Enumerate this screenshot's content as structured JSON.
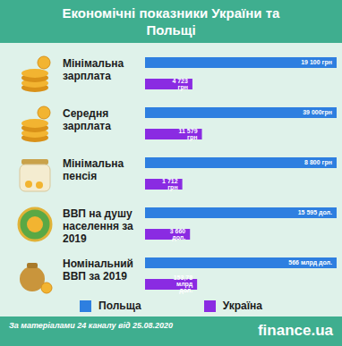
{
  "title": "Економічні показники України та Польщі",
  "legend": [
    {
      "name": "Польща",
      "color": "#2e7fe0"
    },
    {
      "name": "Україна",
      "color": "#8a2be2"
    }
  ],
  "source": "За матеріалами 24 каналу від 25.08.2020",
  "brand": "finance.ua",
  "chart_data": [
    {
      "type": "bar",
      "orientation": "horizontal",
      "title": "Мінімальна зарплата",
      "categories": [
        "Польща",
        "Україна"
      ],
      "values": [
        19100,
        4723
      ],
      "value_labels": [
        "19 100 грн",
        "4 723  грн"
      ],
      "colors": [
        "#2e7fe0",
        "#8a2be2"
      ],
      "xlim": [
        0,
        19100
      ],
      "tick_labels": false,
      "data_labels": true
    },
    {
      "type": "bar",
      "orientation": "horizontal",
      "title": "Середня зарплата",
      "categories": [
        "Польща",
        "Україна"
      ],
      "values": [
        39000,
        11579
      ],
      "value_labels": [
        "39 000грн",
        "11 579 грн"
      ],
      "colors": [
        "#2e7fe0",
        "#8a2be2"
      ],
      "xlim": [
        0,
        39000
      ],
      "tick_labels": false,
      "data_labels": true
    },
    {
      "type": "bar",
      "orientation": "horizontal",
      "title": "Мінімальна пенсія",
      "categories": [
        "Польща",
        "Україна"
      ],
      "values": [
        8800,
        1712
      ],
      "value_labels": [
        "8 800 грн",
        "1 712 грн"
      ],
      "colors": [
        "#2e7fe0",
        "#8a2be2"
      ],
      "xlim": [
        0,
        8800
      ],
      "tick_labels": false,
      "data_labels": true
    },
    {
      "type": "bar",
      "orientation": "horizontal",
      "title": "ВВП на душу населення за 2019",
      "categories": [
        "Польща",
        "Україна"
      ],
      "values": [
        15595,
        3660
      ],
      "value_labels": [
        "15 595 дол.",
        "3 660 дол."
      ],
      "colors": [
        "#2e7fe0",
        "#8a2be2"
      ],
      "xlim": [
        0,
        15595
      ],
      "tick_labels": false,
      "data_labels": true
    },
    {
      "type": "bar",
      "orientation": "horizontal",
      "title": "Номінальний ВВП за 2019",
      "categories": [
        "Польща",
        "Україна"
      ],
      "values": [
        566,
        153.78
      ],
      "value_labels": [
        "566 млрд дол.",
        "153,78 млрд дол."
      ],
      "colors": [
        "#2e7fe0",
        "#8a2be2"
      ],
      "xlim": [
        0,
        566
      ],
      "tick_labels": false,
      "data_labels": true
    }
  ]
}
